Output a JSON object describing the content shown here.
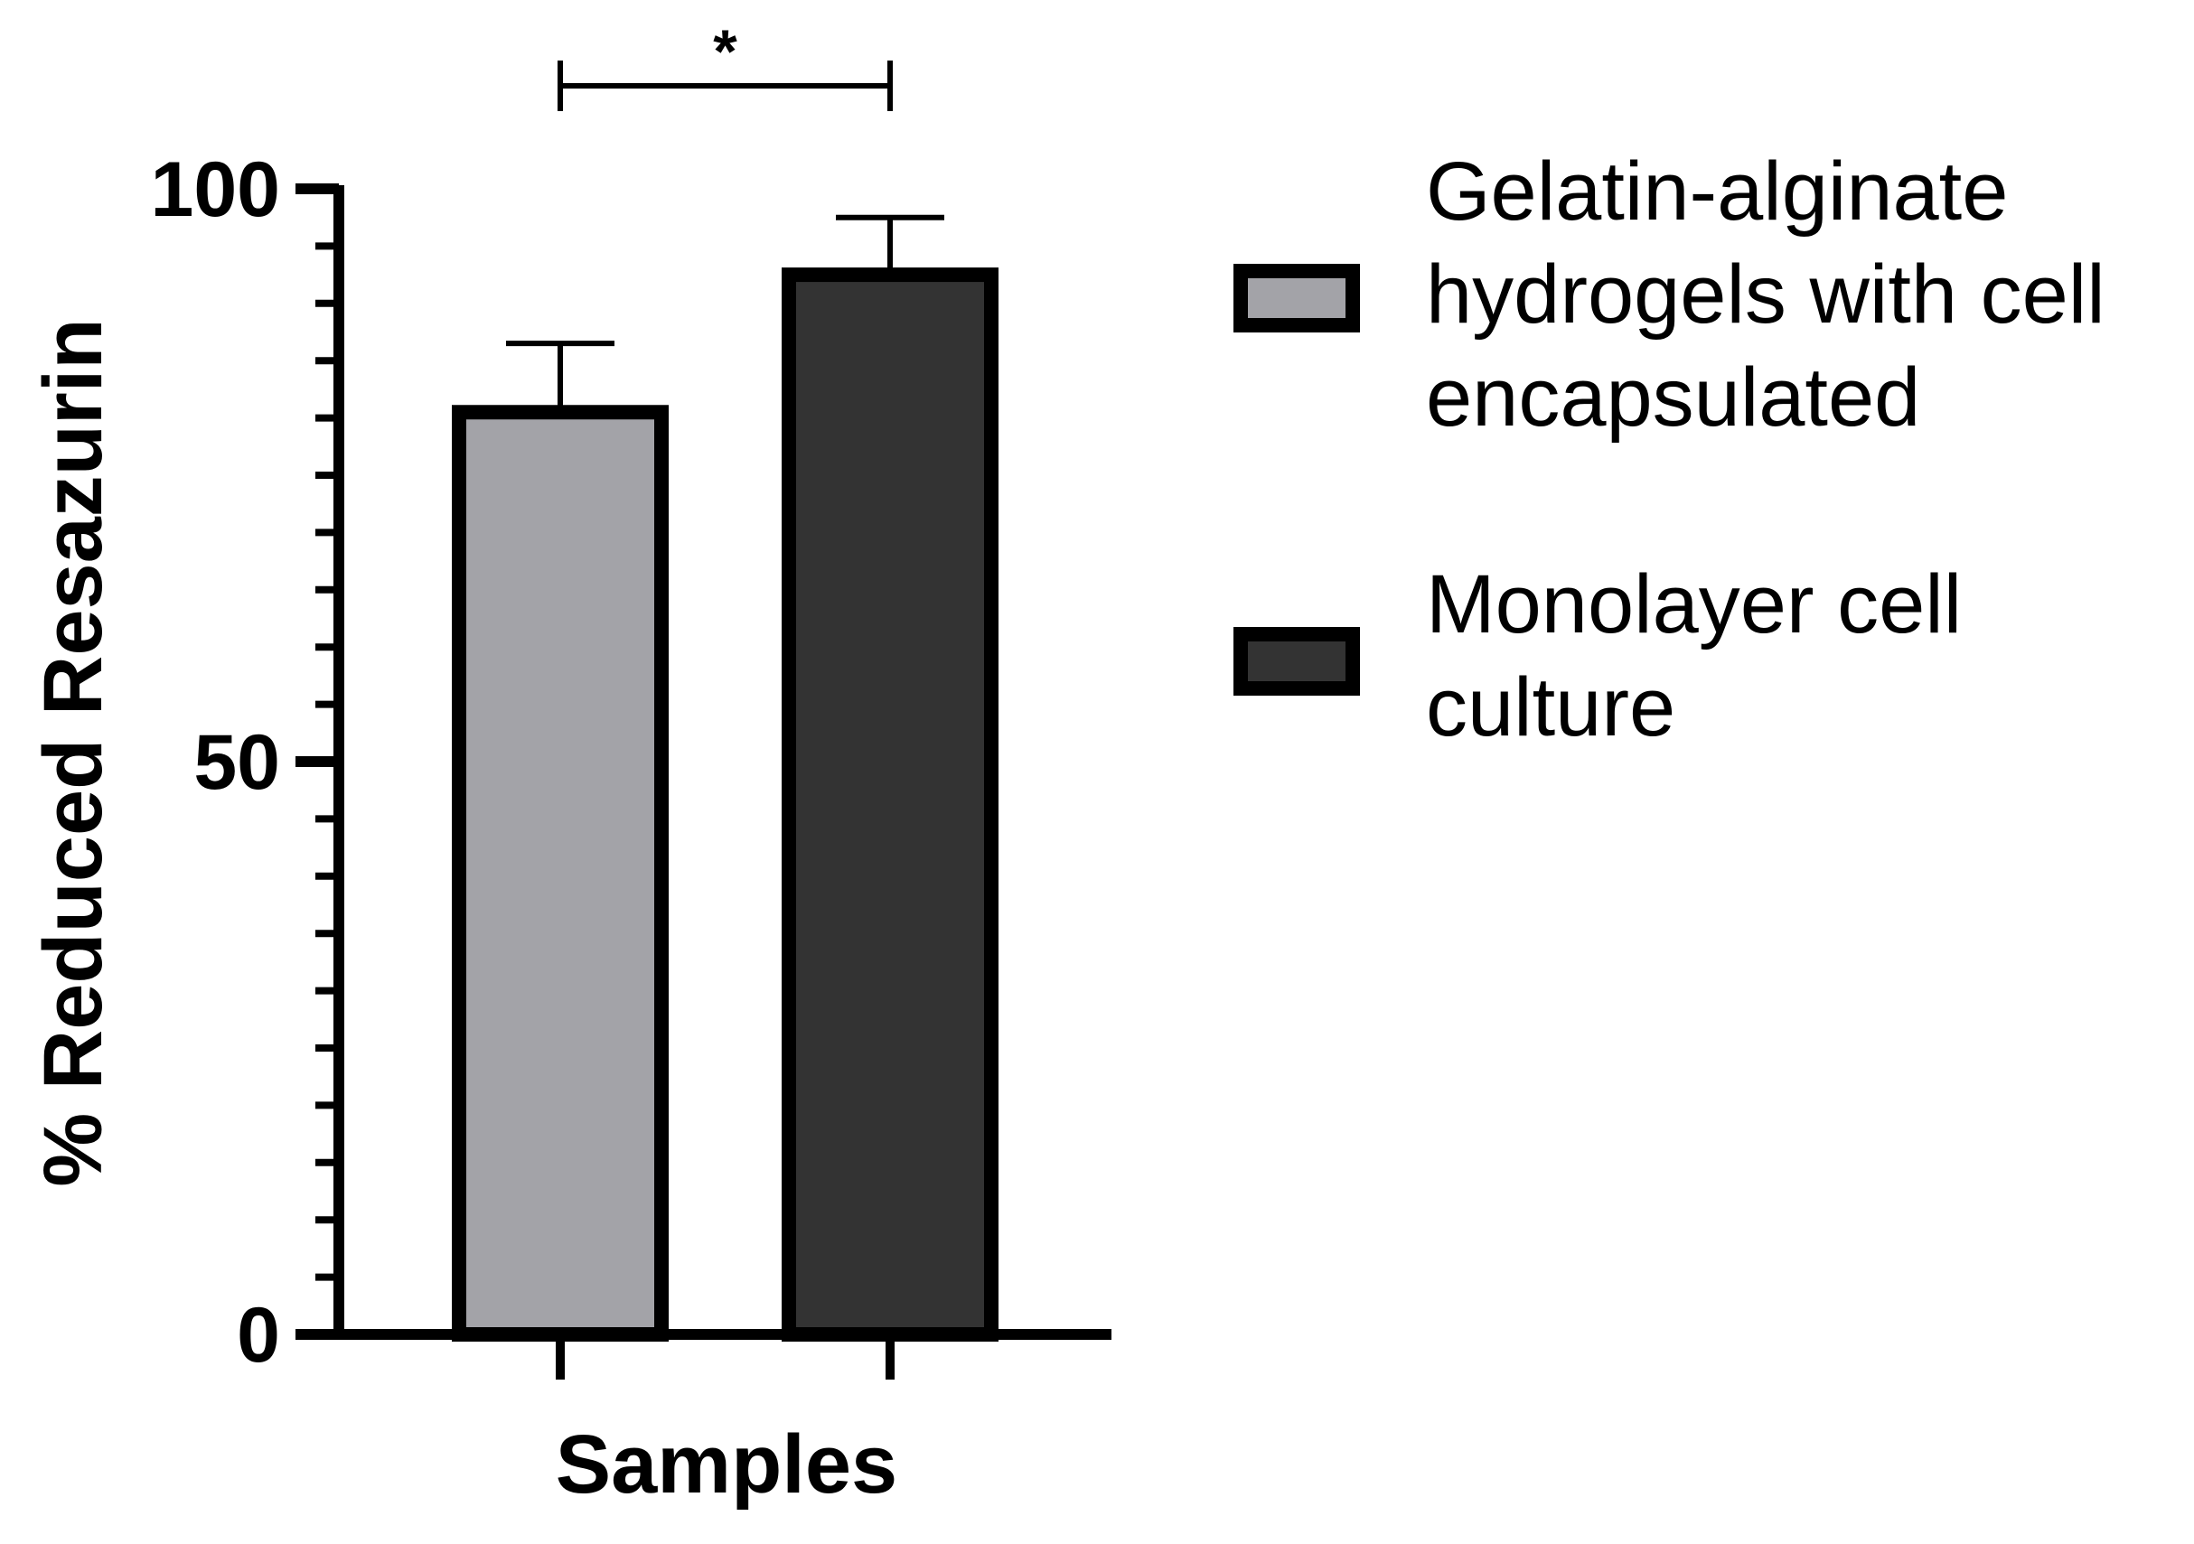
{
  "chart_data": {
    "type": "bar",
    "categories": [
      "Gelatin-alginate hydrogels with cell encapsulated",
      "Monolayer cell culture"
    ],
    "values": [
      80.5,
      92.5
    ],
    "error": [
      6.0,
      5.0
    ],
    "colors": [
      "#a3a3a8",
      "#333333"
    ],
    "edge_color": "#000000",
    "xlabel": "Samples",
    "ylabel": "% Reduced Resazurin",
    "ylim": [
      0,
      100
    ],
    "yticks": [
      "0",
      "50",
      "100"
    ],
    "minor_tick_step": 5,
    "grid": false,
    "significance": {
      "label": "*",
      "between": [
        0,
        1
      ]
    },
    "legend": {
      "position": "right",
      "entries": [
        {
          "name": "Gelatin-alginate hydrogels with cell encapsulated",
          "color": "#a3a3a8",
          "lines": [
            "Gelatin-alginate",
            "hydrogels with cell",
            "encapsulated"
          ]
        },
        {
          "name": "Monolayer cell culture",
          "color": "#333333",
          "lines": [
            "Monolayer cell",
            "culture"
          ]
        }
      ]
    }
  }
}
